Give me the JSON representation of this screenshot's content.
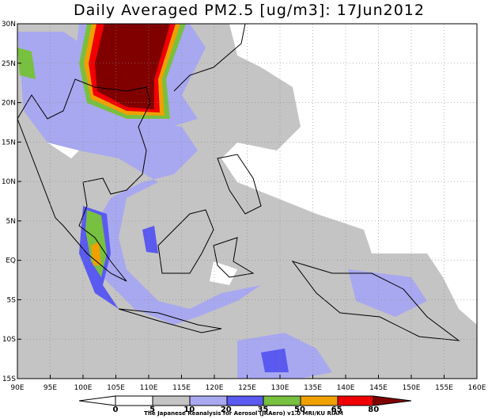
{
  "header": {
    "title": "Daily Averaged PM2.5 [ug/m3]: 17Jun2012"
  },
  "map": {
    "lon_labels": [
      "90E",
      "95E",
      "100E",
      "105E",
      "110E",
      "115E",
      "120E",
      "125E",
      "130E",
      "135E",
      "140E",
      "145E",
      "150E",
      "155E",
      "160E"
    ],
    "lat_labels": [
      "30N",
      "25N",
      "20N",
      "15N",
      "10N",
      "5N",
      "EQ",
      "5S",
      "10S",
      "15S"
    ]
  },
  "colorbar": {
    "labels": [
      "0",
      "5",
      "10",
      "20",
      "35",
      "50",
      "65",
      "80"
    ]
  },
  "footer": {
    "credit": "The Japanese Reanalysis for Aerosol (JRAero) v1.0 MRI/KU RIAM"
  }
}
